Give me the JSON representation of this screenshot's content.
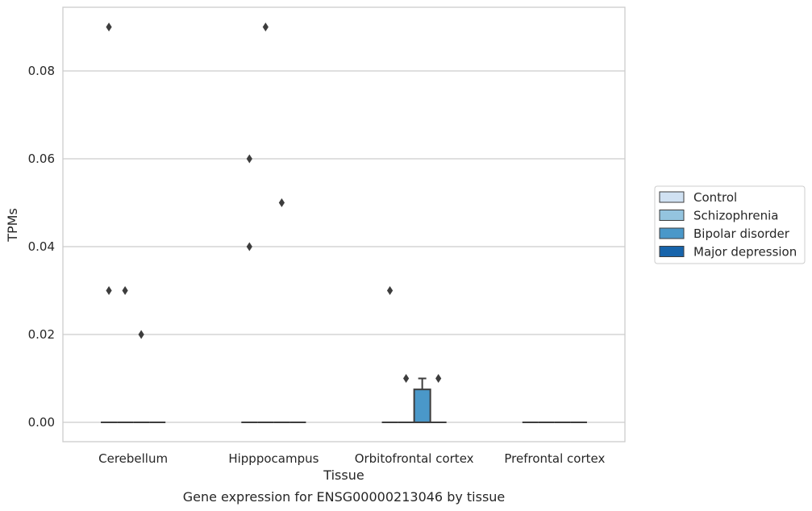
{
  "chart_data": {
    "type": "box",
    "xlabel": "Tissue",
    "ylabel": "TPMs",
    "caption": "Gene expression for ENSG00000213046 by tissue",
    "categories": [
      "Cerebellum",
      "Hipppocampus",
      "Orbitofrontal cortex",
      "Prefrontal cortex"
    ],
    "yticks": [
      "0.00",
      "0.02",
      "0.04",
      "0.06",
      "0.08"
    ],
    "ylim": [
      -0.0044,
      0.0945
    ],
    "grid": true,
    "legend_position": "right",
    "series": [
      {
        "name": "Control",
        "color": "#d0e1f2",
        "boxes": [
          {
            "q1": 0,
            "median": 0,
            "q3": 0,
            "whisker_low": 0,
            "whisker_high": 0,
            "outliers": [
              0.09,
              0.03
            ]
          },
          {
            "q1": 0,
            "median": 0,
            "q3": 0,
            "whisker_low": 0,
            "whisker_high": 0,
            "outliers": [
              0.06,
              0.04
            ]
          },
          {
            "q1": 0,
            "median": 0,
            "q3": 0,
            "whisker_low": 0,
            "whisker_high": 0,
            "outliers": [
              0.03
            ]
          },
          {
            "q1": 0,
            "median": 0,
            "q3": 0,
            "whisker_low": 0,
            "whisker_high": 0,
            "outliers": []
          }
        ]
      },
      {
        "name": "Schizophrenia",
        "color": "#94c4df",
        "boxes": [
          {
            "q1": 0,
            "median": 0,
            "q3": 0,
            "whisker_low": 0,
            "whisker_high": 0,
            "outliers": [
              0.03
            ]
          },
          {
            "q1": 0,
            "median": 0,
            "q3": 0,
            "whisker_low": 0,
            "whisker_high": 0,
            "outliers": [
              0.09
            ]
          },
          {
            "q1": 0,
            "median": 0,
            "q3": 0,
            "whisker_low": 0,
            "whisker_high": 0,
            "outliers": [
              0.01
            ]
          },
          {
            "q1": 0,
            "median": 0,
            "q3": 0,
            "whisker_low": 0,
            "whisker_high": 0,
            "outliers": []
          }
        ]
      },
      {
        "name": "Bipolar disorder",
        "color": "#4a98c9",
        "boxes": [
          {
            "q1": 0,
            "median": 0,
            "q3": 0,
            "whisker_low": 0,
            "whisker_high": 0,
            "outliers": [
              0.02
            ]
          },
          {
            "q1": 0,
            "median": 0,
            "q3": 0,
            "whisker_low": 0,
            "whisker_high": 0,
            "outliers": [
              0.05
            ]
          },
          {
            "q1": 0,
            "median": 0,
            "q3": 0.0075,
            "whisker_low": 0,
            "whisker_high": 0.01,
            "outliers": []
          },
          {
            "q1": 0,
            "median": 0,
            "q3": 0,
            "whisker_low": 0,
            "whisker_high": 0,
            "outliers": []
          }
        ]
      },
      {
        "name": "Major depression",
        "color": "#1764ab",
        "boxes": [
          {
            "q1": 0,
            "median": 0,
            "q3": 0,
            "whisker_low": 0,
            "whisker_high": 0,
            "outliers": []
          },
          {
            "q1": 0,
            "median": 0,
            "q3": 0,
            "whisker_low": 0,
            "whisker_high": 0,
            "outliers": []
          },
          {
            "q1": 0,
            "median": 0,
            "q3": 0,
            "whisker_low": 0,
            "whisker_high": 0,
            "outliers": [
              0.01
            ]
          },
          {
            "q1": 0,
            "median": 0,
            "q3": 0,
            "whisker_low": 0,
            "whisker_high": 0,
            "outliers": []
          }
        ]
      }
    ]
  }
}
